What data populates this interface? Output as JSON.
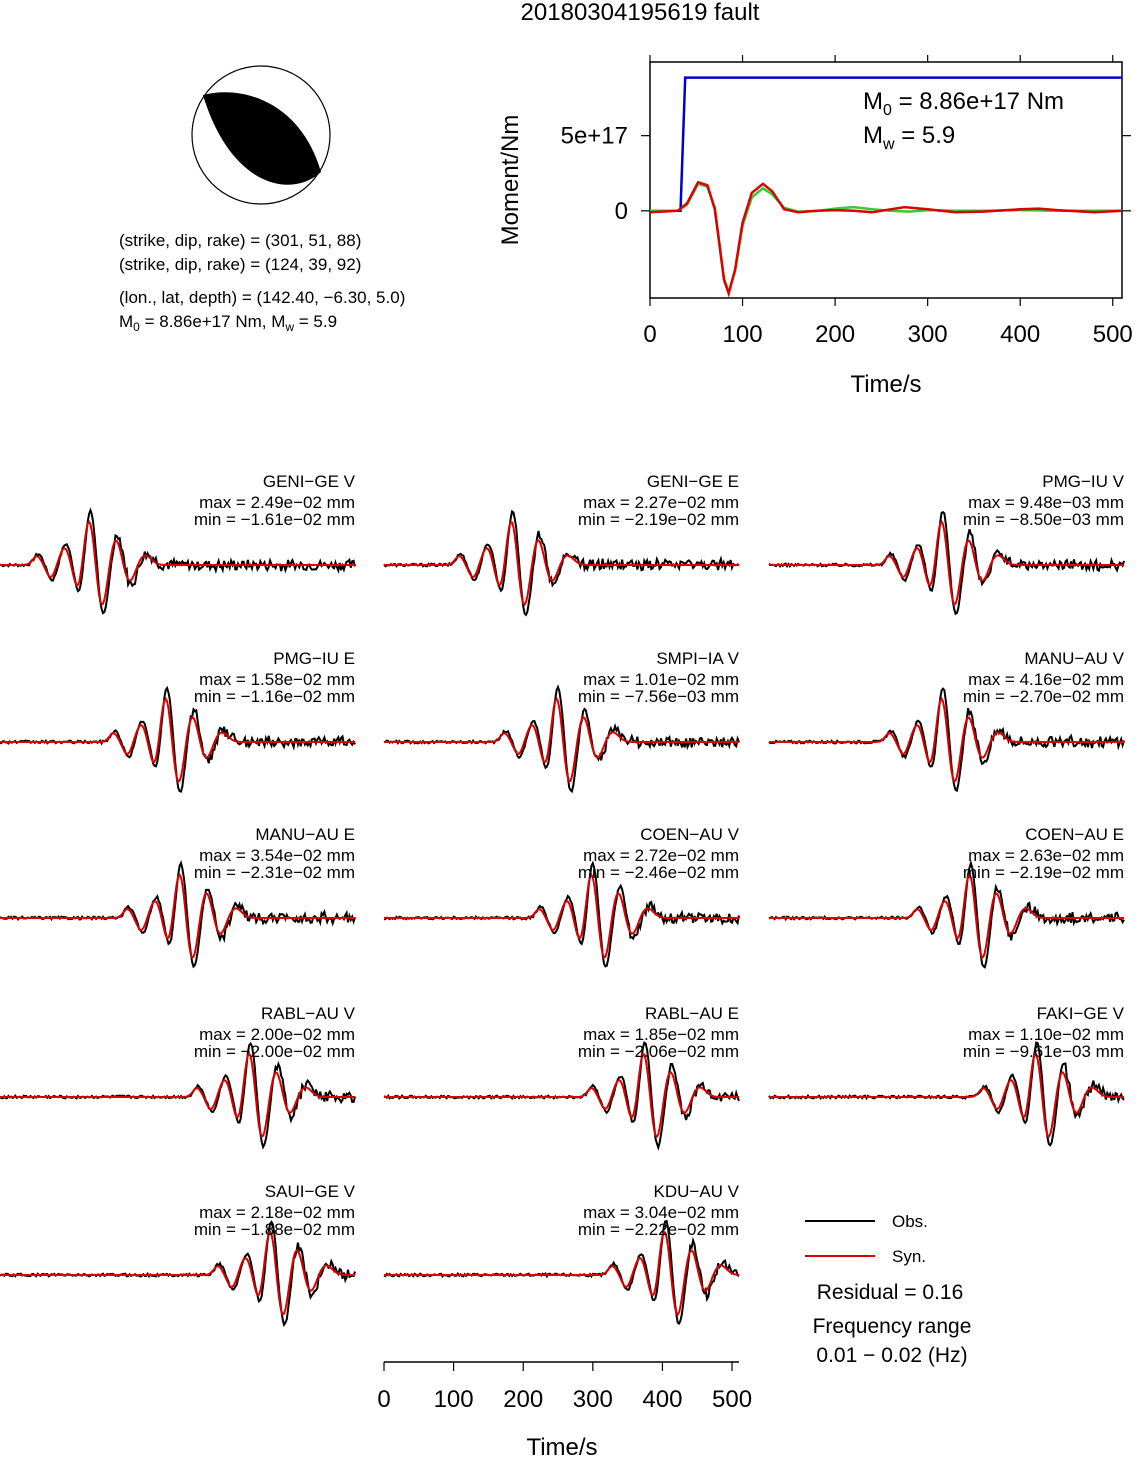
{
  "title": "20180304195619 fault",
  "mechanism": {
    "line1": "(strike, dip, rake) = (301, 51, 88)",
    "line2": "(strike, dip, rake) = (124, 39, 92)",
    "line3": "(lon., lat, depth) = (142.40, −6.30, 5.0)",
    "line4_prefix": "M",
    "line4_sub": "0",
    "line4_rest": " = 8.86e+17 Nm, M",
    "line4_sub2": "w",
    "line4_end": " = 5.9"
  },
  "stf_labels": {
    "m0_prefix": "M",
    "m0_sub": "0",
    "m0_rest": " = 8.86e+17 Nm",
    "mw_prefix": "M",
    "mw_sub": "w",
    "mw_rest": " = 5.9"
  },
  "legend": {
    "obs": "Obs.",
    "syn": "Syn.",
    "residual": "Residual = 0.16",
    "freq_line1": "Frequency range",
    "freq_line2": "0.01 − 0.02 (Hz)"
  },
  "colors": {
    "observed": "#000000",
    "synthetic": "#dd0000",
    "moment_cumulative": "#0000cc",
    "stf_green": "#33cc33",
    "stf_red": "#dd0000",
    "beachball_fill": "#000000"
  },
  "chart_data": [
    {
      "type": "line",
      "panel": "moment",
      "xlabel": "Time/s",
      "ylabel": "Moment/Nm",
      "xlim": [
        0,
        510
      ],
      "ylim": [
        -5.8e+17,
        9.9e+17
      ],
      "xticks": [
        "0",
        "100",
        "200",
        "300",
        "400",
        "500"
      ],
      "xtick_values": [
        0,
        100,
        200,
        300,
        400,
        500
      ],
      "yticks": [
        "0",
        "5e+17"
      ],
      "ytick_values": [
        0,
        5e+17
      ],
      "series": [
        {
          "color": "blue",
          "x": [
            0,
            33,
            38,
            510
          ],
          "y": [
            0,
            0,
            8.86e+17,
            8.86e+17
          ]
        },
        {
          "color": "green",
          "x": [
            0,
            30,
            40,
            52,
            62,
            70,
            80,
            85,
            92,
            100,
            110,
            122,
            132,
            145,
            160,
            180,
            200,
            220,
            240,
            260,
            280,
            300,
            330,
            360,
            400,
            440,
            480,
            510
          ],
          "y": [
            0,
            0,
            4e+16,
            1.8e+17,
            1.6e+17,
            2e+16,
            -4.5e+17,
            -5.4e+17,
            -4e+17,
            -1e+17,
            9e+16,
            1.5e+17,
            1.1e+17,
            2e+16,
            -5000000000000000.0,
            -2000000000000000.0,
            1.5e+16,
            2.5e+16,
            1e+16,
            0.0,
            -5000000000000000.0,
            5000000000000000.0,
            0.0,
            0.0,
            5000000000000000.0,
            0.0,
            0.0,
            0.0
          ]
        },
        {
          "color": "red",
          "x": [
            0,
            30,
            40,
            52,
            62,
            70,
            80,
            85,
            92,
            100,
            110,
            122,
            132,
            145,
            160,
            180,
            200,
            220,
            240,
            260,
            275,
            300,
            330,
            360,
            400,
            420,
            440,
            480,
            510
          ],
          "y": [
            -1e+16,
            0,
            5e+16,
            1.9e+17,
            1.7e+17,
            1e+16,
            -4.6e+17,
            -5.5e+17,
            -3.9e+17,
            -8e+16,
            1.2e+17,
            1.8e+17,
            1.3e+17,
            1e+16,
            -1e+16,
            0.0,
            5000000000000000.0,
            0.0,
            -1e+16,
            1e+16,
            2.5e+16,
            1e+16,
            -1e+16,
            -5000000000000000.0,
            1e+16,
            1.5e+16,
            5000000000000000.0,
            -1e+16,
            0.0
          ]
        }
      ]
    },
    {
      "type": "line",
      "panel": "waveforms",
      "xlabel": "Time/s",
      "xlim": [
        0,
        510
      ],
      "xticks": [
        "0",
        "100",
        "200",
        "300",
        "400",
        "500"
      ],
      "xtick_values": [
        0,
        100,
        200,
        300,
        400,
        500
      ],
      "traces": [
        {
          "label": "GENI−GE V",
          "max": "max = 2.49e−02 mm",
          "min": "min = −1.61e−02 mm",
          "col": 0,
          "row": 0,
          "arrival": 130
        },
        {
          "label": "GENI−GE E",
          "max": "max = 2.27e−02 mm",
          "min": "min = −2.19e−02 mm",
          "col": 1,
          "row": 0,
          "arrival": 185
        },
        {
          "label": "PMG−IU V",
          "max": "max = 9.48e−03 mm",
          "min": "min = −8.50e−03 mm",
          "col": 2,
          "row": 0,
          "arrival": 250
        },
        {
          "label": "PMG−IU E",
          "max": "max = 1.58e−02 mm",
          "min": "min = −1.16e−02 mm",
          "col": 0,
          "row": 1,
          "arrival": 240
        },
        {
          "label": "SMPI−IA V",
          "max": "max = 1.01e−02 mm",
          "min": "min = −7.56e−03 mm",
          "col": 1,
          "row": 1,
          "arrival": 250
        },
        {
          "label": "MANU−AU V",
          "max": "max = 4.16e−02 mm",
          "min": "min = −2.70e−02 mm",
          "col": 2,
          "row": 1,
          "arrival": 250
        },
        {
          "label": "MANU−AU E",
          "max": "max = 3.54e−02 mm",
          "min": "min = −2.31e−02 mm",
          "col": 0,
          "row": 2,
          "arrival": 260
        },
        {
          "label": "COEN−AU V",
          "max": "max = 2.72e−02 mm",
          "min": "min = −2.46e−02 mm",
          "col": 1,
          "row": 2,
          "arrival": 300
        },
        {
          "label": "COEN−AU E",
          "max": "max = 2.63e−02 mm",
          "min": "min = −2.19e−02 mm",
          "col": 2,
          "row": 2,
          "arrival": 290
        },
        {
          "label": "RABL−AU V",
          "max": "max = 2.00e−02 mm",
          "min": "min = −2.00e−02 mm",
          "col": 0,
          "row": 3,
          "arrival": 360
        },
        {
          "label": "RABL−AU E",
          "max": "max = 1.85e−02 mm",
          "min": "min = −2.06e−02 mm",
          "col": 1,
          "row": 3,
          "arrival": 375
        },
        {
          "label": "FAKI−GE V",
          "max": "max = 1.10e−02 mm",
          "min": "min = −9.61e−03 mm",
          "col": 2,
          "row": 3,
          "arrival": 385
        },
        {
          "label": "SAUI−GE V",
          "max": "max = 2.18e−02 mm",
          "min": "min = −1.88e−02 mm",
          "col": 0,
          "row": 4,
          "arrival": 390
        },
        {
          "label": "KDU−AU V",
          "max": "max = 3.04e−02 mm",
          "min": "min = −2.22e−02 mm",
          "col": 1,
          "row": 4,
          "arrival": 405
        }
      ]
    }
  ]
}
